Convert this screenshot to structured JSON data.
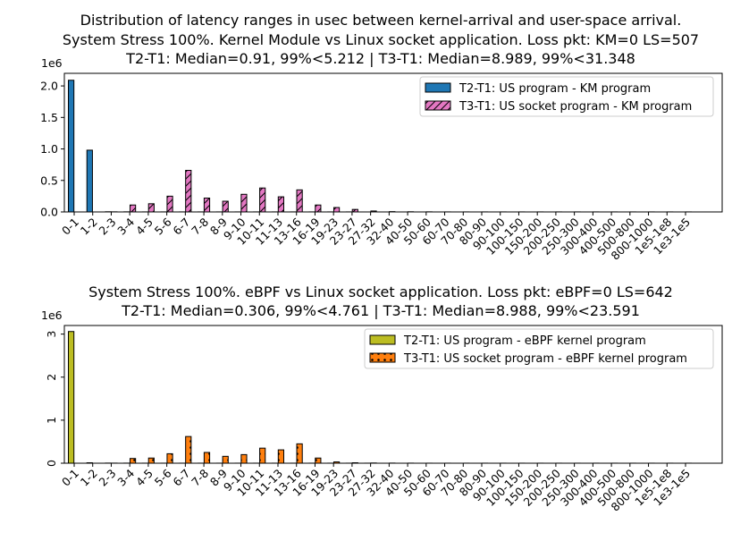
{
  "chart_data": [
    {
      "type": "bar",
      "title": [
        "Distribution of latency ranges in usec between kernel-arrival and user-space arrival.",
        "System Stress 100%. Kernel Module vs Linux socket application. Loss pkt: KM=0 LS=507",
        "T2-T1: Median=0.91, 99%<5.212 | T3-T1: Median=8.989, 99%<31.348"
      ],
      "scale_label": "1e6",
      "categories": [
        "0-1",
        "1-2",
        "2-3",
        "3-4",
        "4-5",
        "5-6",
        "6-7",
        "7-8",
        "8-9",
        "9-10",
        "10-11",
        "11-13",
        "13-16",
        "16-19",
        "19-23",
        "23-27",
        "27-32",
        "32-40",
        "40-50",
        "50-60",
        "60-70",
        "70-80",
        "80-90",
        "90-100",
        "100-150",
        "150-200",
        "200-250",
        "250-300",
        "300-400",
        "400-500",
        "500-800",
        "800-1000",
        "1e5-1e8",
        "1e3-1e5"
      ],
      "ylim": [
        0,
        2.2
      ],
      "yticks": [
        0.0,
        0.5,
        1.0,
        1.5,
        2.0
      ],
      "ytick_labels": [
        "0.0",
        "0.5",
        "1.0",
        "1.5",
        "2.0"
      ],
      "legend_position": "top-right",
      "grid": false,
      "series": [
        {
          "name": "T2-T1: US program - KM program",
          "color": "#1f77b4",
          "hatch": "none",
          "values": [
            2.09,
            0.98,
            0.003,
            0.002,
            0.001,
            0.001,
            0.001,
            0.001,
            0.001,
            0.001,
            0.001,
            0.001,
            0.001,
            0.001,
            0.001,
            0.001,
            0,
            0,
            0,
            0,
            0,
            0,
            0,
            0,
            0,
            0,
            0,
            0,
            0,
            0,
            0,
            0,
            0,
            0
          ]
        },
        {
          "name": "T3-T1: US socket program - KM program",
          "color": "#e377c2",
          "hatch": "diagonal",
          "values": [
            0,
            0,
            0.002,
            0.11,
            0.13,
            0.25,
            0.66,
            0.22,
            0.17,
            0.28,
            0.38,
            0.24,
            0.35,
            0.11,
            0.07,
            0.04,
            0.015,
            0.005,
            0.003,
            0.002,
            0.001,
            0.001,
            0.001,
            0.001,
            0.001,
            0.001,
            0.001,
            0.001,
            0.001,
            0.001,
            0.001,
            0.001,
            0.001,
            0.001
          ]
        }
      ]
    },
    {
      "type": "bar",
      "title": [
        "System Stress 100%. eBPF vs Linux socket application. Loss pkt: eBPF=0 LS=642",
        "T2-T1: Median=0.306, 99%<4.761 | T3-T1: Median=8.988, 99%<23.591"
      ],
      "scale_label": "1e6",
      "categories": [
        "0-1",
        "1-2",
        "2-3",
        "3-4",
        "4-5",
        "5-6",
        "6-7",
        "7-8",
        "8-9",
        "9-10",
        "10-11",
        "11-13",
        "13-16",
        "16-19",
        "19-23",
        "23-27",
        "27-32",
        "32-40",
        "40-50",
        "50-60",
        "60-70",
        "70-80",
        "80-90",
        "90-100",
        "100-150",
        "150-200",
        "200-250",
        "250-300",
        "300-400",
        "400-500",
        "500-800",
        "800-1000",
        "1e5-1e8",
        "1e3-1e5"
      ],
      "ylim": [
        0,
        3.2
      ],
      "yticks": [
        0,
        1,
        2,
        3
      ],
      "ytick_labels": [
        "0",
        "1",
        "2",
        "3"
      ],
      "legend_position": "top-right",
      "grid": false,
      "series": [
        {
          "name": "T2-T1: US program - eBPF kernel program",
          "color": "#bcbd22",
          "hatch": "none",
          "values": [
            3.06,
            0.01,
            0.003,
            0.002,
            0.001,
            0.001,
            0.001,
            0.001,
            0.001,
            0.001,
            0.001,
            0.001,
            0.001,
            0.001,
            0.001,
            0.001,
            0.001,
            0,
            0,
            0,
            0,
            0,
            0,
            0,
            0,
            0,
            0,
            0,
            0,
            0,
            0,
            0,
            0,
            0
          ]
        },
        {
          "name": "T3-T1: US socket program - eBPF kernel program",
          "color": "#ff7f0e",
          "hatch": "dots",
          "values": [
            0,
            0,
            0.002,
            0.11,
            0.12,
            0.22,
            0.62,
            0.25,
            0.16,
            0.2,
            0.35,
            0.31,
            0.45,
            0.12,
            0.03,
            0.01,
            0.005,
            0.003,
            0.002,
            0.001,
            0.001,
            0.001,
            0.001,
            0.001,
            0.001,
            0.001,
            0.001,
            0.001,
            0.001,
            0.001,
            0.001,
            0.001,
            0.001,
            0.001
          ]
        }
      ]
    }
  ]
}
